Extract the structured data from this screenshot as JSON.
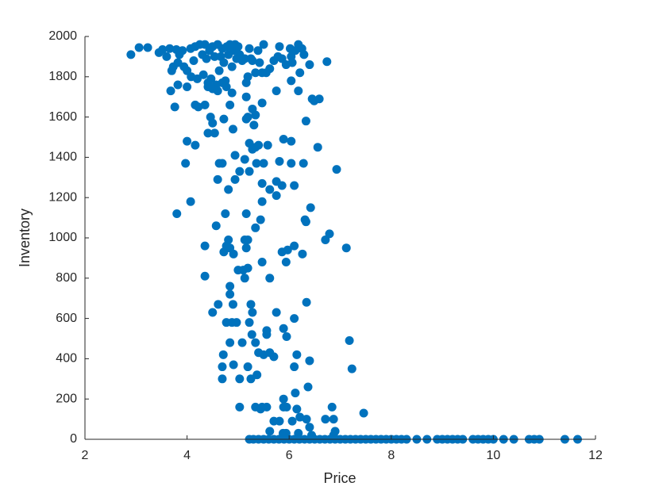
{
  "chart_data": {
    "type": "scatter",
    "color": "#0072bd",
    "x_label": "Price",
    "y_label": "Inventory",
    "xlim": [
      2,
      12
    ],
    "xticks": [
      2,
      4,
      6,
      8,
      10,
      12
    ],
    "ylim": [
      0,
      2000
    ],
    "yticks": [
      0,
      200,
      400,
      600,
      800,
      1000,
      1200,
      1400,
      1600,
      1800,
      2000
    ],
    "grid": false,
    "x": [
      2.9,
      3.06,
      3.23,
      3.45,
      3.52,
      3.6,
      3.66,
      3.7,
      3.73,
      3.79,
      3.82,
      3.85,
      3.91,
      3.94,
      4.0,
      4.07,
      4.08,
      4.13,
      4.16,
      4.2,
      4.25,
      4.3,
      4.32,
      4.35,
      4.38,
      4.41,
      4.44,
      4.47,
      4.5,
      4.54,
      4.57,
      4.6,
      4.63,
      4.66,
      4.69,
      4.72,
      4.75,
      4.78,
      4.81,
      4.84,
      4.88,
      4.91,
      4.94,
      4.97,
      5.0,
      5.03,
      5.08,
      5.13,
      5.16,
      5.19,
      5.22,
      5.25,
      5.28,
      5.34,
      5.39,
      5.42,
      5.47,
      5.5,
      5.55,
      5.62,
      5.7,
      5.78,
      5.81,
      5.86,
      5.94,
      6.02,
      6.04,
      6.06,
      6.12,
      6.18,
      6.21,
      6.25,
      6.29,
      6.4,
      6.74,
      3.68,
      3.76,
      3.82,
      4.0,
      4.16,
      4.22,
      4.35,
      4.41,
      4.5,
      4.6,
      4.69,
      4.77,
      4.84,
      4.88,
      5.16,
      5.19,
      5.28,
      5.34,
      5.47,
      5.75,
      6.04,
      6.18,
      6.45,
      6.49,
      6.59,
      4.41,
      4.46,
      4.5,
      4.54,
      4.72,
      4.9,
      5.16,
      5.22,
      5.28,
      5.31,
      5.34,
      5.4,
      5.58,
      5.89,
      6.04,
      6.33,
      6.56,
      4.0,
      4.16,
      3.97,
      4.63,
      4.69,
      4.94,
      5.03,
      5.13,
      5.22,
      5.36,
      5.5,
      5.62,
      5.75,
      5.81,
      5.86,
      6.04,
      6.1,
      6.28,
      6.93,
      4.6,
      4.81,
      4.94,
      5.47,
      5.75,
      3.8,
      4.07,
      4.75,
      5.16,
      5.44,
      5.47,
      6.31,
      6.33,
      6.42,
      4.57,
      4.81,
      5.13,
      5.19,
      5.34,
      6.71,
      6.79,
      4.35,
      4.72,
      4.77,
      4.84,
      4.91,
      5.0,
      5.1,
      5.13,
      5.16,
      5.19,
      5.47,
      5.62,
      5.86,
      5.94,
      5.97,
      6.1,
      6.26,
      7.12,
      4.35,
      4.84,
      4.84,
      4.9,
      4.61,
      5.25,
      5.28,
      5.75,
      6.34,
      4.5,
      4.77,
      4.88,
      4.97,
      5.22,
      5.27,
      5.34,
      5.4,
      5.5,
      5.56,
      5.56,
      5.62,
      5.7,
      5.89,
      5.95,
      6.1,
      6.15,
      4.84,
      5.08,
      7.18,
      4.71,
      6.4,
      4.69,
      4.69,
      4.91,
      5.03,
      5.19,
      5.25,
      5.37,
      6.1,
      7.23,
      5.89,
      6.12,
      6.37,
      5.03,
      5.34,
      5.44,
      5.47,
      5.56,
      5.7,
      5.81,
      5.89,
      5.95,
      6.06,
      6.15,
      6.21,
      6.34,
      6.4,
      6.84,
      6.87,
      6.71,
      7.46,
      6.9,
      5.62,
      5.88,
      5.94,
      6.18,
      6.44,
      6.87,
      5.22,
      5.3,
      5.4,
      5.5,
      5.6,
      5.7,
      5.8,
      5.9,
      6.0,
      6.1,
      6.2,
      6.3,
      6.4,
      6.5,
      6.6,
      6.7,
      6.8,
      6.9,
      7.0,
      7.1,
      7.2,
      7.3,
      7.4,
      7.5,
      7.6,
      7.7,
      7.8,
      7.9,
      8.0,
      8.1,
      8.2,
      8.3,
      8.5,
      8.7,
      8.9,
      9.0,
      9.1,
      9.2,
      9.3,
      9.4,
      9.6,
      9.7,
      9.8,
      9.9,
      10.0,
      10.2,
      10.4,
      10.7,
      10.8,
      10.9,
      11.4,
      11.65
    ],
    "values": [
      1910,
      1945,
      1945,
      1920,
      1935,
      1900,
      1940,
      1830,
      1850,
      1935,
      1870,
      1910,
      1930,
      1850,
      1830,
      1940,
      1800,
      1880,
      1950,
      1790,
      1960,
      1910,
      1810,
      1960,
      1890,
      1770,
      1930,
      1790,
      1950,
      1900,
      1760,
      1960,
      1830,
      1900,
      1940,
      1870,
      1780,
      1950,
      1910,
      1960,
      1850,
      1930,
      1960,
      1890,
      1950,
      1910,
      1880,
      1890,
      1770,
      1800,
      1940,
      1890,
      1880,
      1820,
      1930,
      1870,
      1820,
      1960,
      1820,
      1840,
      1880,
      1900,
      1950,
      1890,
      1860,
      1940,
      1900,
      1870,
      1930,
      1960,
      1820,
      1940,
      1910,
      1860,
      1875,
      1730,
      1650,
      1760,
      1750,
      1660,
      1650,
      1660,
      1750,
      1740,
      1730,
      1770,
      1750,
      1660,
      1720,
      1700,
      1600,
      1640,
      1610,
      1670,
      1730,
      1780,
      1730,
      1690,
      1680,
      1690,
      1520,
      1600,
      1570,
      1520,
      1590,
      1540,
      1590,
      1470,
      1440,
      1560,
      1450,
      1460,
      1460,
      1490,
      1480,
      1580,
      1450,
      1480,
      1460,
      1370,
      1370,
      1370,
      1410,
      1330,
      1390,
      1330,
      1370,
      1370,
      1240,
      1280,
      1380,
      1260,
      1370,
      1260,
      1370,
      1340,
      1290,
      1240,
      1290,
      1270,
      1210,
      1120,
      1180,
      1120,
      1120,
      1090,
      1180,
      1090,
      1080,
      1150,
      1060,
      990,
      990,
      990,
      1050,
      990,
      1020,
      960,
      930,
      960,
      950,
      920,
      840,
      840,
      800,
      950,
      850,
      880,
      800,
      930,
      880,
      940,
      960,
      920,
      950,
      810,
      760,
      720,
      670,
      670,
      670,
      630,
      630,
      680,
      630,
      580,
      580,
      580,
      580,
      520,
      480,
      430,
      420,
      520,
      540,
      430,
      410,
      550,
      510,
      600,
      420,
      480,
      480,
      490,
      420,
      390,
      360,
      300,
      370,
      300,
      360,
      300,
      320,
      360,
      350,
      200,
      230,
      260,
      160,
      160,
      150,
      160,
      160,
      90,
      90,
      160,
      160,
      90,
      150,
      110,
      100,
      60,
      160,
      100,
      100,
      130,
      40,
      40,
      30,
      30,
      30,
      20,
      20,
      0,
      0,
      0,
      0,
      0,
      0,
      0,
      0,
      0,
      0,
      0,
      0,
      0,
      0,
      0,
      0,
      0,
      0,
      0,
      0,
      0,
      0,
      0,
      0,
      0,
      0,
      0,
      0,
      0,
      0,
      0,
      0,
      0,
      0,
      0,
      0,
      0,
      0,
      0,
      0,
      0,
      0,
      0,
      0,
      0,
      0,
      0,
      0,
      0,
      0,
      0,
      0
    ]
  }
}
